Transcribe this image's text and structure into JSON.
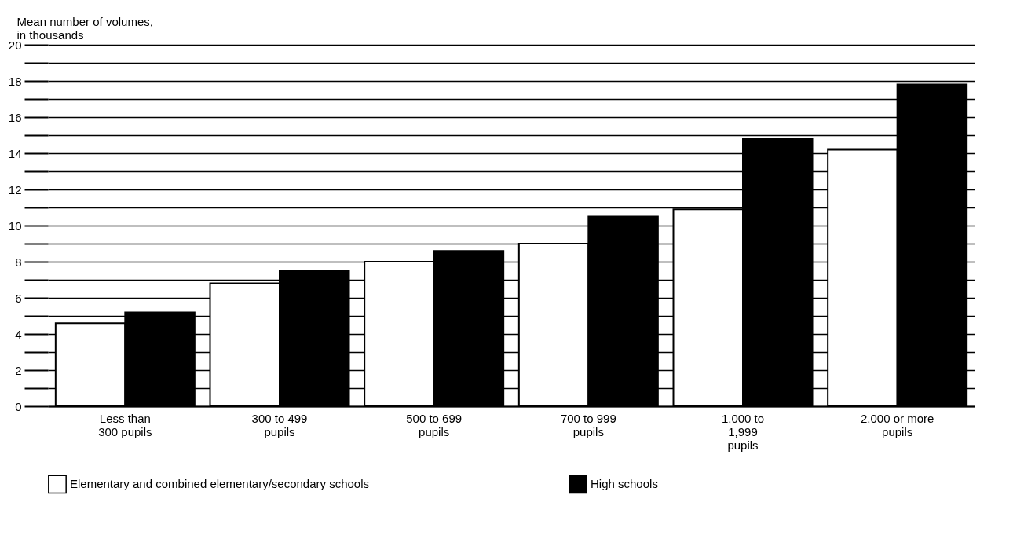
{
  "chart_data": {
    "type": "bar",
    "ylabel": "Mean number of volumes,\nin thousands",
    "categories": [
      "Less than\n300 pupils",
      "300 to 499\npupils",
      "500 to 699\npupils",
      "700 to 999\npupils",
      "1,000 to\n1,999\npupils",
      "2,000 or more\npupils"
    ],
    "series": [
      {
        "name": "Elementary and combined elementary/secondary schools",
        "color": "#ffffff",
        "values": [
          4.6,
          6.8,
          8.0,
          9.0,
          10.9,
          14.2
        ]
      },
      {
        "name": "High schools",
        "color": "#000000",
        "values": [
          5.2,
          7.5,
          8.6,
          10.5,
          14.8,
          17.8
        ]
      }
    ],
    "ylim": [
      0,
      20
    ],
    "yticks": [
      0,
      {
        "value": 1,
        "label": null
      },
      2,
      {
        "value": 3,
        "label": null
      },
      4,
      {
        "value": 5,
        "label": null
      },
      6,
      {
        "value": 7,
        "label": null
      },
      8,
      {
        "value": 9,
        "label": null
      },
      10,
      {
        "value": 11,
        "label": null
      },
      12,
      {
        "value": 13,
        "label": null
      },
      14,
      {
        "value": 15,
        "label": null
      },
      16,
      {
        "value": 17,
        "label": null
      },
      18,
      {
        "value": 19,
        "label": null
      },
      20
    ],
    "grid": true,
    "legend": "bottom"
  }
}
